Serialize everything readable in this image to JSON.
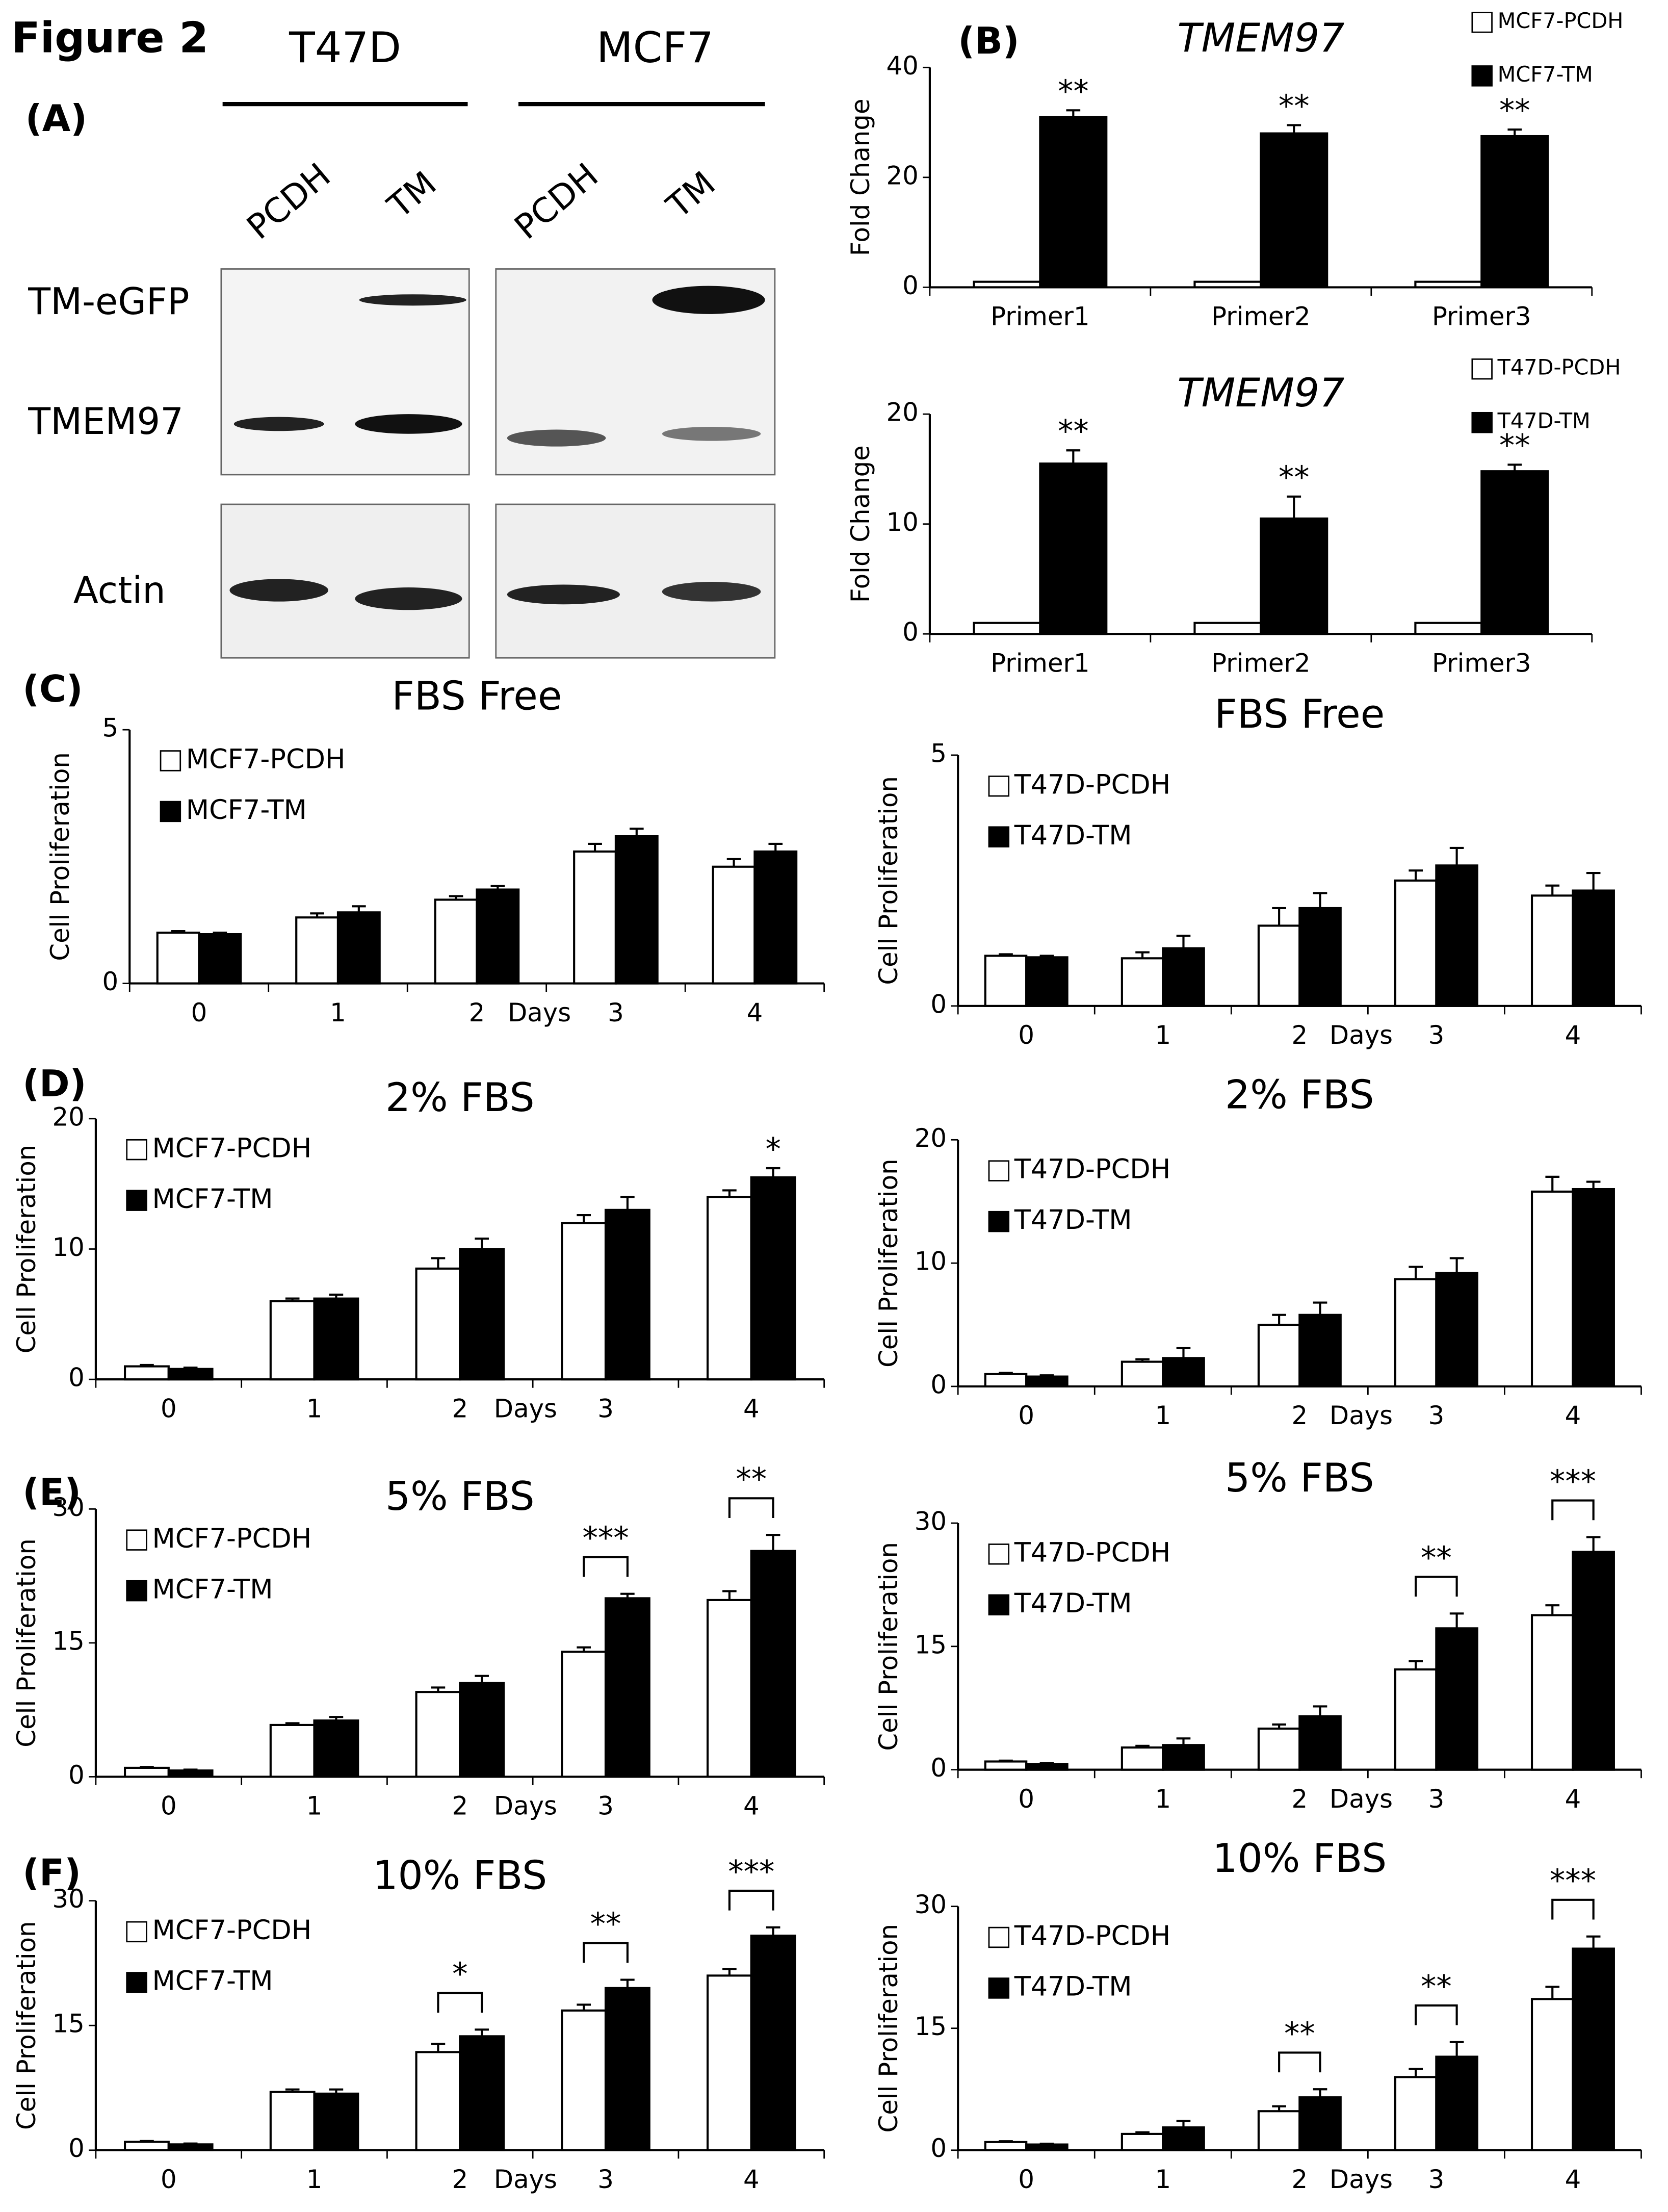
{
  "figure": {
    "title": "Figure 2",
    "panels": [
      "(A)",
      "(B)",
      "(C)",
      "(D)",
      "(E)",
      "(F)"
    ],
    "blot": {
      "cell_lines": [
        "T47D",
        "MCF7"
      ],
      "lanes": [
        "PCDH",
        "TM",
        "PCDH",
        "TM"
      ],
      "bands": [
        "TM-eGFP",
        "TMEM97",
        "Actin"
      ]
    }
  },
  "chart_data": [
    {
      "type": "bar",
      "title": "TMEM97",
      "title_style": "italic",
      "y_label": "Fold Change",
      "categories": [
        "Primer1",
        "Primer2",
        "Primer3"
      ],
      "series": [
        {
          "name": "MCF7-PCDH",
          "color": "#ffffff",
          "values": [
            1,
            1,
            1
          ]
        },
        {
          "name": "MCF7-TM",
          "color": "#000000",
          "values": [
            31,
            28,
            27.5
          ],
          "errors": [
            1.2,
            1.5,
            1.2
          ]
        }
      ],
      "ylim": [
        0,
        40
      ],
      "yticks": [
        0,
        20,
        40
      ],
      "legend": "right",
      "annotation_style": "above",
      "annotations": [
        {
          "text": "**",
          "category": "Primer1"
        },
        {
          "text": "**",
          "category": "Primer2"
        },
        {
          "text": "**",
          "category": "Primer3"
        }
      ]
    },
    {
      "type": "bar",
      "title": "TMEM97",
      "title_style": "italic",
      "y_label": "Fold Change",
      "categories": [
        "Primer1",
        "Primer2",
        "Primer3"
      ],
      "series": [
        {
          "name": "T47D-PCDH",
          "color": "#ffffff",
          "values": [
            1,
            1,
            1
          ]
        },
        {
          "name": "T47D-TM",
          "color": "#000000",
          "values": [
            15.5,
            10.5,
            14.8
          ],
          "errors": [
            1.2,
            2,
            0.6
          ]
        }
      ],
      "ylim": [
        0,
        20
      ],
      "yticks": [
        0,
        10,
        20
      ],
      "legend": "right",
      "annotation_style": "above",
      "annotations": [
        {
          "text": "**",
          "category": "Primer1"
        },
        {
          "text": "**",
          "category": "Primer2"
        },
        {
          "text": "**",
          "category": "Primer3"
        }
      ]
    },
    {
      "type": "bar",
      "title": "FBS Free",
      "y_label": "Cell Proliferation",
      "x_label": "Days",
      "categories": [
        "0",
        "1",
        "2",
        "3",
        "4"
      ],
      "series": [
        {
          "name": "MCF7-PCDH",
          "color": "#ffffff",
          "values": [
            1,
            1.3,
            1.65,
            2.6,
            2.3
          ],
          "errors": [
            0.03,
            0.08,
            0.07,
            0.15,
            0.15
          ]
        },
        {
          "name": "MCF7-TM",
          "color": "#000000",
          "values": [
            0.97,
            1.4,
            1.85,
            2.9,
            2.6
          ],
          "errors": [
            0.03,
            0.12,
            0.07,
            0.15,
            0.15
          ]
        }
      ],
      "ylim": [
        0,
        5
      ],
      "yticks": [
        0,
        5
      ],
      "legend": "upper left",
      "annotation_style": "bracket",
      "annotations": []
    },
    {
      "type": "bar",
      "title": "FBS Free",
      "y_label": "Cell Proliferation",
      "x_label": "Days",
      "categories": [
        "0",
        "1",
        "2",
        "3",
        "4"
      ],
      "series": [
        {
          "name": "T47D-PCDH",
          "color": "#ffffff",
          "values": [
            1,
            0.95,
            1.6,
            2.5,
            2.2
          ],
          "errors": [
            0.03,
            0.12,
            0.35,
            0.2,
            0.2
          ]
        },
        {
          "name": "T47D-TM",
          "color": "#000000",
          "values": [
            0.97,
            1.15,
            1.95,
            2.8,
            2.3
          ],
          "errors": [
            0.03,
            0.25,
            0.3,
            0.35,
            0.35
          ]
        }
      ],
      "ylim": [
        0,
        5
      ],
      "yticks": [
        0,
        5
      ],
      "legend": "upper left",
      "annotation_style": "bracket",
      "annotations": []
    },
    {
      "type": "bar",
      "title": "2% FBS",
      "y_label": "Cell Proliferation",
      "x_label": "Days",
      "categories": [
        "0",
        "1",
        "2",
        "3",
        "4"
      ],
      "series": [
        {
          "name": "MCF7-PCDH",
          "color": "#ffffff",
          "values": [
            1,
            6,
            8.5,
            12,
            14
          ],
          "errors": [
            0.1,
            0.2,
            0.8,
            0.6,
            0.5
          ]
        },
        {
          "name": "MCF7-TM",
          "color": "#000000",
          "values": [
            0.8,
            6.2,
            10,
            13,
            15.5
          ],
          "errors": [
            0.1,
            0.3,
            0.8,
            1,
            0.7
          ]
        }
      ],
      "ylim": [
        0,
        20
      ],
      "yticks": [
        0,
        10,
        20
      ],
      "legend": "upper left",
      "annotation_style": "above",
      "annotations": [
        {
          "text": "*",
          "category": "4"
        }
      ]
    },
    {
      "type": "bar",
      "title": "2% FBS",
      "y_label": "Cell Proliferation",
      "x_label": "Days",
      "categories": [
        "0",
        "1",
        "2",
        "3",
        "4"
      ],
      "series": [
        {
          "name": "T47D-PCDH",
          "color": "#ffffff",
          "values": [
            1,
            2,
            5,
            8.7,
            15.8
          ],
          "errors": [
            0.1,
            0.2,
            0.8,
            1,
            1.2
          ]
        },
        {
          "name": "T47D-TM",
          "color": "#000000",
          "values": [
            0.8,
            2.3,
            5.8,
            9.2,
            16
          ],
          "errors": [
            0.1,
            0.8,
            1,
            1.2,
            0.6
          ]
        }
      ],
      "ylim": [
        0,
        20
      ],
      "yticks": [
        0,
        10,
        20
      ],
      "legend": "upper left",
      "annotation_style": "bracket",
      "annotations": []
    },
    {
      "type": "bar",
      "title": "5% FBS",
      "y_label": "Cell Proliferation",
      "x_label": "Days",
      "categories": [
        "0",
        "1",
        "2",
        "3",
        "4"
      ],
      "series": [
        {
          "name": "MCF7-PCDH",
          "color": "#ffffff",
          "values": [
            1,
            5.8,
            9.5,
            14,
            19.8
          ],
          "errors": [
            0.1,
            0.2,
            0.5,
            0.5,
            1
          ]
        },
        {
          "name": "MCF7-TM",
          "color": "#000000",
          "values": [
            0.7,
            6.3,
            10.5,
            20,
            25.3
          ],
          "errors": [
            0.1,
            0.4,
            0.8,
            0.5,
            1.8
          ]
        }
      ],
      "ylim": [
        0,
        30
      ],
      "yticks": [
        0,
        15,
        30
      ],
      "legend": "upper left",
      "annotation_style": "bracket",
      "annotations": [
        {
          "text": "***",
          "category": "3"
        },
        {
          "text": "**",
          "category": "4"
        }
      ]
    },
    {
      "type": "bar",
      "title": "5% FBS",
      "y_label": "Cell Proliferation",
      "x_label": "Days",
      "categories": [
        "0",
        "1",
        "2",
        "3",
        "4"
      ],
      "series": [
        {
          "name": "T47D-PCDH",
          "color": "#ffffff",
          "values": [
            1,
            2.7,
            5,
            12.2,
            18.8
          ],
          "errors": [
            0.1,
            0.2,
            0.5,
            1,
            1.2
          ]
        },
        {
          "name": "T47D-TM",
          "color": "#000000",
          "values": [
            0.7,
            3,
            6.5,
            17.2,
            26.5
          ],
          "errors": [
            0.1,
            0.8,
            1.2,
            1.8,
            1.8
          ]
        }
      ],
      "ylim": [
        0,
        30
      ],
      "yticks": [
        0,
        15,
        30
      ],
      "legend": "upper left",
      "annotation_style": "bracket",
      "annotations": [
        {
          "text": "**",
          "category": "3"
        },
        {
          "text": "***",
          "category": "4"
        }
      ]
    },
    {
      "type": "bar",
      "title": "10% FBS",
      "y_label": "Cell Proliferation",
      "x_label": "Days",
      "categories": [
        "0",
        "1",
        "2",
        "3",
        "4"
      ],
      "series": [
        {
          "name": "MCF7-PCDH",
          "color": "#ffffff",
          "values": [
            1,
            7,
            11.8,
            16.8,
            21
          ],
          "errors": [
            0.1,
            0.3,
            1,
            0.7,
            0.8
          ]
        },
        {
          "name": "MCF7-TM",
          "color": "#000000",
          "values": [
            0.7,
            6.8,
            13.7,
            19.5,
            25.8
          ],
          "errors": [
            0.1,
            0.5,
            0.8,
            1,
            1
          ]
        }
      ],
      "ylim": [
        0,
        30
      ],
      "yticks": [
        0,
        15,
        30
      ],
      "legend": "upper left",
      "annotation_style": "bracket",
      "annotations": [
        {
          "text": "*",
          "category": "2"
        },
        {
          "text": "**",
          "category": "3"
        },
        {
          "text": "***",
          "category": "4"
        }
      ]
    },
    {
      "type": "bar",
      "title": "10% FBS",
      "y_label": "Cell Proliferation",
      "x_label": "Days",
      "categories": [
        "0",
        "1",
        "2",
        "3",
        "4"
      ],
      "series": [
        {
          "name": "T47D-PCDH",
          "color": "#ffffff",
          "values": [
            1,
            2,
            4.8,
            9,
            18.6
          ],
          "errors": [
            0.1,
            0.2,
            0.6,
            1,
            1.5
          ]
        },
        {
          "name": "T47D-TM",
          "color": "#000000",
          "values": [
            0.7,
            2.8,
            6.5,
            11.5,
            24.8
          ],
          "errors": [
            0.1,
            0.8,
            1,
            1.8,
            1.5
          ]
        }
      ],
      "ylim": [
        0,
        30
      ],
      "yticks": [
        0,
        15,
        30
      ],
      "legend": "upper left",
      "annotation_style": "bracket",
      "annotations": [
        {
          "text": "**",
          "category": "2"
        },
        {
          "text": "**",
          "category": "3"
        },
        {
          "text": "***",
          "category": "4"
        }
      ]
    }
  ]
}
